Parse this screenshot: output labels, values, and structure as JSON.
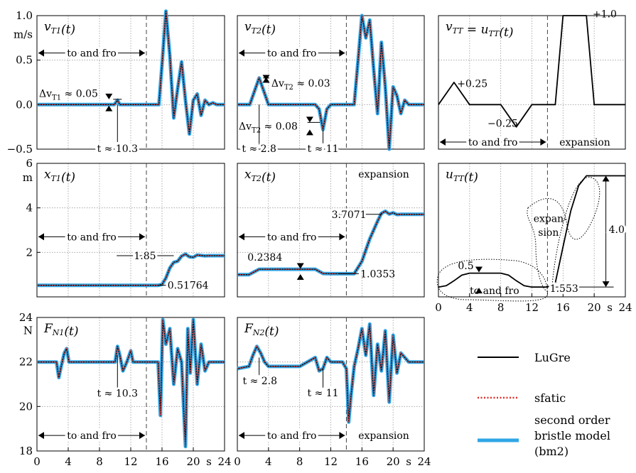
{
  "colors": {
    "lugre": "#000000",
    "sfatic": "#e0312b",
    "bm2": "#2fa6e6",
    "grid": "#9a9a9a",
    "phase": "#444444"
  },
  "legend": {
    "lugre": "LuGre",
    "sfatic": "sfatic",
    "bm2_lines": [
      "second order",
      "bristle model",
      "(bm2)"
    ]
  },
  "chart_data": [
    {
      "type": "line",
      "title_var": "v",
      "title_sub": "T1",
      "title_arg": "(t)",
      "ylabel": "m/s",
      "xlim": [
        0,
        24
      ],
      "ylim": [
        -0.5,
        1.0
      ],
      "yticks": [
        "1.0",
        "0.5",
        "0.0",
        "−0.5"
      ],
      "series": [
        {
          "x": [
            0,
            9.9,
            10.3,
            10.6,
            15.6,
            16,
            16.5,
            17,
            17.5,
            18,
            18.5,
            19,
            19.5,
            20,
            20.5,
            21,
            21.5,
            22,
            22.5,
            23,
            24
          ],
          "y": [
            0,
            0,
            0.05,
            0,
            0,
            0.45,
            1.05,
            0.55,
            -0.15,
            0.18,
            0.48,
            0.05,
            -0.33,
            0.05,
            0.12,
            -0.12,
            0.05,
            0.0,
            0.02,
            0,
            0
          ]
        }
      ],
      "annotations": [
        "to and fro",
        "Δv",
        "T1",
        " ≈ 0.05",
        "t ≈ 10.3"
      ]
    },
    {
      "type": "line",
      "title_var": "v",
      "title_sub": "T2",
      "title_arg": "(t)",
      "xlim": [
        0,
        24
      ],
      "ylim": [
        -0.5,
        1.0
      ],
      "series": [
        {
          "x": [
            0,
            1.6,
            2.2,
            2.8,
            3.4,
            4,
            10,
            10.5,
            11,
            11.5,
            12,
            15,
            15.5,
            16,
            16.5,
            17,
            17.5,
            18,
            18.5,
            19,
            19.5,
            20,
            20.5,
            21,
            21.5,
            22,
            24
          ],
          "y": [
            0,
            0,
            0.15,
            0.3,
            0.15,
            0,
            0,
            -0.05,
            -0.28,
            -0.05,
            0,
            0,
            0.5,
            1.0,
            0.75,
            0.95,
            0.4,
            -0.1,
            0.7,
            0.2,
            -0.5,
            0.2,
            0.1,
            -0.1,
            0.05,
            0,
            0
          ]
        }
      ],
      "annotations": [
        "to and fro",
        "Δv",
        "T2",
        " ≈ 0.03",
        " ≈ 0.08",
        "t ≈ 2.8",
        "t ≈ 11"
      ]
    },
    {
      "type": "line",
      "title_full": "v",
      "title_sub": "TT",
      "title_eq": " = ",
      "title_dot": "u",
      "title_sub2": "TT",
      "title_arg": "(t)",
      "xlim": [
        0,
        24
      ],
      "ylim": [
        -0.5,
        1.0
      ],
      "series": [
        {
          "x": [
            0,
            2,
            4,
            8,
            10,
            12,
            14,
            15,
            16,
            19,
            20,
            24
          ],
          "y": [
            0,
            0.25,
            0,
            0,
            -0.25,
            0,
            0,
            0,
            1.0,
            1.0,
            0,
            0
          ]
        }
      ],
      "annotations": [
        "+0.25",
        "−0.25",
        "+1.0",
        "to and fro",
        "expansion"
      ]
    },
    {
      "type": "line",
      "title_var": "x",
      "title_sub": "T1",
      "title_arg": "(t)",
      "ylabel": "m",
      "xlim": [
        0,
        24
      ],
      "ylim": [
        0,
        6
      ],
      "yticks": [
        "6",
        "4",
        "2"
      ],
      "series": [
        {
          "x": [
            0,
            15.5,
            16,
            16.5,
            17,
            17.5,
            18,
            18.5,
            19,
            19.5,
            20,
            20.5,
            21,
            21.5,
            22,
            24
          ],
          "y": [
            0.52,
            0.52,
            0.56,
            0.85,
            1.3,
            1.55,
            1.6,
            1.83,
            1.92,
            1.8,
            1.78,
            1.88,
            1.86,
            1.84,
            1.85,
            1.85
          ]
        }
      ],
      "annotations": [
        "to and fro",
        "1.85",
        "0.51764"
      ]
    },
    {
      "type": "line",
      "title_var": "x",
      "title_sub": "T2",
      "title_arg": "(t)",
      "xlim": [
        0,
        24
      ],
      "ylim": [
        0,
        6
      ],
      "series": [
        {
          "x": [
            0,
            1.5,
            2.8,
            4,
            10,
            11,
            12,
            15,
            16,
            17,
            17.5,
            18,
            18.5,
            19,
            19.5,
            20,
            20.5,
            21,
            22,
            24
          ],
          "y": [
            1.0,
            1.0,
            1.24,
            1.24,
            1.24,
            1.05,
            1.04,
            1.04,
            1.6,
            2.6,
            3.0,
            3.4,
            3.75,
            3.85,
            3.72,
            3.78,
            3.7,
            3.71,
            3.71,
            3.71
          ]
        }
      ],
      "annotations": [
        "to and fro",
        "expansion",
        "3.7071",
        "0.2384",
        "1.0353"
      ]
    },
    {
      "type": "line",
      "title_var": "u",
      "title_sub": "TT",
      "title_arg": "(t)",
      "xlim": [
        0,
        24
      ],
      "ylim": [
        1.2,
        6.0
      ],
      "xticks": [
        "0",
        "4",
        "8",
        "12",
        "16",
        "20",
        "s",
        "24"
      ],
      "series": [
        {
          "x": [
            0,
            1,
            2,
            3,
            4,
            8,
            9,
            10,
            11,
            12,
            14,
            15,
            16,
            17,
            18,
            19,
            24
          ],
          "y": [
            1.553,
            1.6,
            1.78,
            1.98,
            2.053,
            2.053,
            1.98,
            1.78,
            1.6,
            1.553,
            1.553,
            1.7,
            3.0,
            4.3,
            5.2,
            5.553,
            5.553
          ]
        }
      ],
      "annotations": [
        "0.5",
        "to and fro",
        "expan-",
        "sion",
        "1.553",
        "4.0"
      ]
    },
    {
      "type": "line",
      "title_var": "F",
      "title_sub": "N1",
      "title_arg": "(t)",
      "ylabel": "N",
      "xlim": [
        0,
        24
      ],
      "ylim": [
        18,
        24
      ],
      "yticks": [
        "24",
        "22",
        "20",
        "18"
      ],
      "xticks": [
        "0",
        "4",
        "8",
        "12",
        "16",
        "20",
        "s",
        "24"
      ],
      "series": [
        {
          "x": [
            0,
            2.5,
            2.8,
            3.1,
            3.5,
            3.8,
            4.1,
            10,
            10.3,
            10.6,
            11,
            11.5,
            12,
            12.3,
            15.5,
            15.8,
            16.1,
            16.5,
            17,
            17.5,
            18,
            18.5,
            19,
            19.3,
            19.6,
            20,
            20.5,
            21,
            21.5,
            22,
            24
          ],
          "y": [
            22,
            22,
            21.3,
            21.8,
            22.4,
            22.6,
            22,
            22,
            22.7,
            22.3,
            21.6,
            22,
            22.5,
            22,
            22,
            19.6,
            23.9,
            22.8,
            23.5,
            21.0,
            22.6,
            22.0,
            18.2,
            23.5,
            21.5,
            23.9,
            21.0,
            22.8,
            21.6,
            22,
            22
          ]
        }
      ],
      "annotations": [
        "to and fro",
        "t ≈ 10.3"
      ]
    },
    {
      "type": "line",
      "title_var": "F",
      "title_sub": "N2",
      "title_arg": "(t)",
      "xlim": [
        0,
        24
      ],
      "ylim": [
        18,
        24
      ],
      "xticks": [
        "0",
        "4",
        "8",
        "12",
        "16",
        "20",
        "s",
        "24"
      ],
      "series": [
        {
          "x": [
            0,
            1.5,
            2,
            2.5,
            3,
            3.5,
            4,
            8,
            9,
            10,
            10.5,
            11,
            11.5,
            12,
            13.5,
            14,
            14.3,
            14.6,
            15,
            15.5,
            16,
            16.5,
            17,
            17.5,
            18,
            18.5,
            19,
            19.5,
            20,
            20.5,
            21,
            22,
            24
          ],
          "y": [
            21.7,
            21.8,
            22.3,
            22.7,
            22.4,
            22.0,
            21.8,
            21.8,
            22.0,
            22.2,
            21.6,
            21.7,
            22.2,
            22.0,
            22.0,
            21.7,
            19.3,
            20.5,
            21.8,
            22.6,
            23.5,
            22.3,
            23.7,
            20.5,
            22.8,
            21.6,
            23.4,
            20.2,
            23.2,
            21.5,
            22.4,
            22,
            22
          ]
        }
      ],
      "annotations": [
        "to and fro",
        "expansion",
        "t ≈ 2.8",
        "t ≈ 11"
      ]
    }
  ]
}
